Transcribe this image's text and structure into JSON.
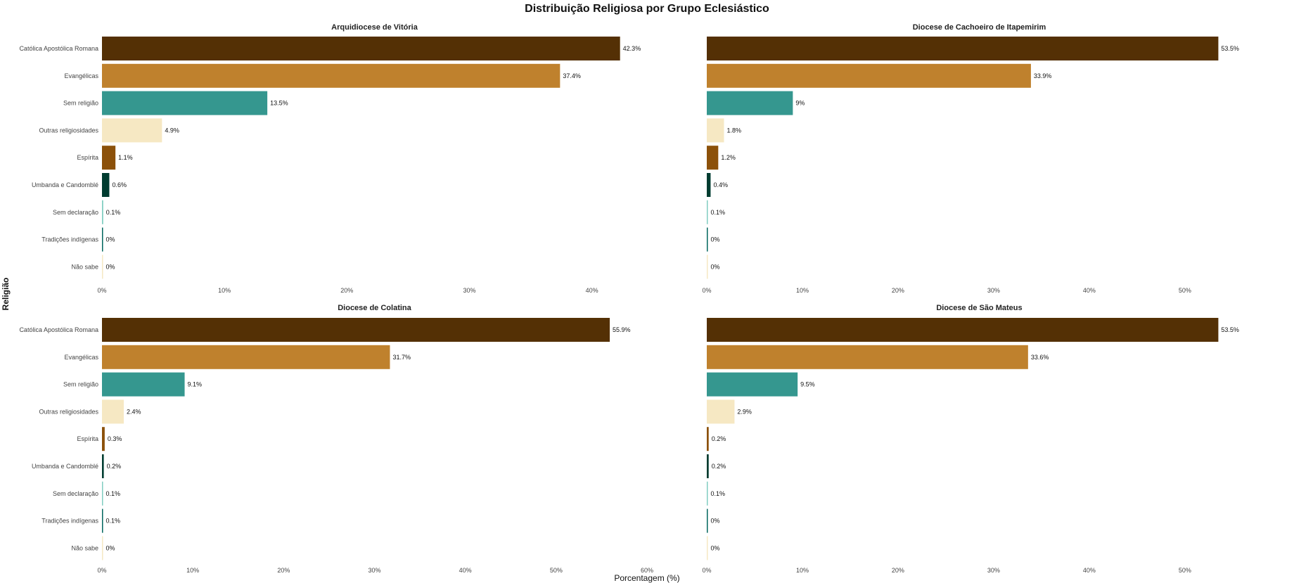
{
  "chart_data": {
    "type": "bar",
    "orientation": "horizontal",
    "title": "Distribuição Religiosa por Grupo Eclesiástico",
    "xlabel": "Porcentagem (%)",
    "ylabel": "Religião",
    "grid": false,
    "legend": "none",
    "categories": [
      "Católica Apostólica Romana",
      "Evangélicas",
      "Sem religião",
      "Outras religiosidades",
      "Espírita",
      "Umbanda e Candomblé",
      "Sem declaração",
      "Tradições indígenas",
      "Não sabe"
    ],
    "colors": [
      "#543005",
      "#bf812d",
      "#35978f",
      "#f6e8c3",
      "#8c510a",
      "#003c30",
      "#80cdc1",
      "#01665e",
      "#f6e8c3"
    ],
    "panels": [
      {
        "title": "Arquidiocese de Vitória",
        "values": [
          42.3,
          37.4,
          13.5,
          4.9,
          1.1,
          0.6,
          0.1,
          0.0,
          0.0
        ],
        "labels": [
          "42.3%",
          "37.4%",
          "13.5%",
          "4.9%",
          "1.1%",
          "0.6%",
          "0.1%",
          "0%",
          "0%"
        ],
        "xticks": [
          "0%",
          "10%",
          "20%",
          "30%",
          "40%"
        ],
        "xtick_values": [
          0,
          10,
          20,
          30,
          40
        ],
        "xlim": [
          0,
          44.5
        ]
      },
      {
        "title": "Diocese de Cachoeiro de Itapemirim",
        "values": [
          53.5,
          33.9,
          9.0,
          1.8,
          1.2,
          0.4,
          0.1,
          0.0,
          0.0
        ],
        "labels": [
          "53.5%",
          "33.9%",
          "9%",
          "1.8%",
          "1.2%",
          "0.4%",
          "0.1%",
          "0%",
          "0%"
        ],
        "xticks": [
          "0%",
          "10%",
          "20%",
          "30%",
          "40%",
          "50%"
        ],
        "xtick_values": [
          0,
          10,
          20,
          30,
          40,
          50
        ],
        "xlim": [
          0,
          57
        ]
      },
      {
        "title": "Diocese de Colatina",
        "values": [
          55.9,
          31.7,
          9.1,
          2.4,
          0.3,
          0.2,
          0.1,
          0.1,
          0.0
        ],
        "labels": [
          "55.9%",
          "31.7%",
          "9.1%",
          "2.4%",
          "0.3%",
          "0.2%",
          "0.1%",
          "0.1%",
          "0%"
        ],
        "xticks": [
          "0%",
          "10%",
          "20%",
          "30%",
          "40%",
          "50%",
          "60%"
        ],
        "xtick_values": [
          0,
          10,
          20,
          30,
          40,
          50,
          60
        ],
        "xlim": [
          0,
          60
        ]
      },
      {
        "title": "Diocese de São Mateus",
        "values": [
          53.5,
          33.6,
          9.5,
          2.9,
          0.2,
          0.2,
          0.1,
          0.0,
          0.0
        ],
        "labels": [
          "53.5%",
          "33.6%",
          "9.5%",
          "2.9%",
          "0.2%",
          "0.2%",
          "0.1%",
          "0%",
          "0%"
        ],
        "xticks": [
          "0%",
          "10%",
          "20%",
          "30%",
          "40%",
          "50%"
        ],
        "xtick_values": [
          0,
          10,
          20,
          30,
          40,
          50
        ],
        "xlim": [
          0,
          57
        ]
      }
    ]
  }
}
